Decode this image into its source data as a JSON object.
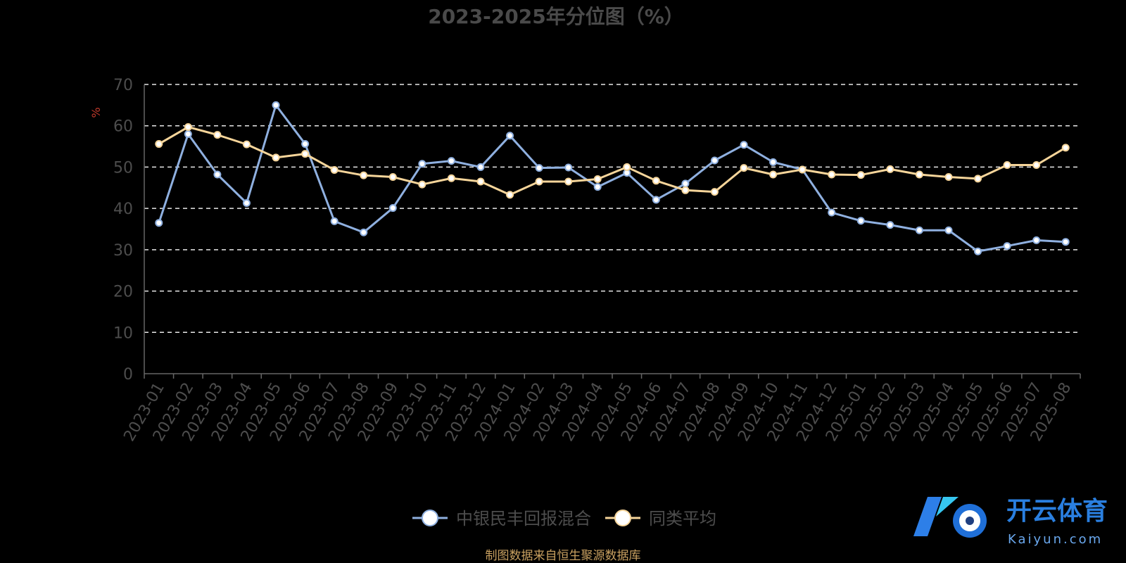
{
  "chart_data": {
    "type": "line",
    "title": "2023-2025年分位图（%）",
    "ylabel": "%",
    "ylim": [
      0,
      70
    ],
    "yticks": [
      0,
      10,
      20,
      30,
      40,
      50,
      60,
      70
    ],
    "grid": true,
    "legend_position": "bottom-center",
    "categories": [
      "2023-01",
      "2023-02",
      "2023-03",
      "2023-04",
      "2023-05",
      "2023-06",
      "2023-07",
      "2023-08",
      "2023-09",
      "2023-10",
      "2023-11",
      "2023-12",
      "2024-01",
      "2024-02",
      "2024-03",
      "2024-04",
      "2024-05",
      "2024-06",
      "2024-07",
      "2024-08",
      "2024-09",
      "2024-10",
      "2024-11",
      "2024-12",
      "2025-01",
      "2025-02",
      "2025-03",
      "2025-04",
      "2025-05",
      "2025-06",
      "2025-07",
      "2025-08"
    ],
    "series": [
      {
        "name": "中银民丰回报混合",
        "color": "#8fb0e0",
        "values": [
          36.5,
          58,
          48.2,
          41.3,
          65,
          55.6,
          36.9,
          34.2,
          40.1,
          50.8,
          51.5,
          50,
          57.6,
          49.8,
          49.9,
          45.2,
          48.6,
          42.1,
          46,
          51.6,
          55.4,
          51.2,
          49.4,
          39,
          37,
          36,
          34.7,
          34.7,
          29.6,
          30.9,
          32.3,
          31.9
        ]
      },
      {
        "name": "同类平均",
        "color": "#f6d59a",
        "values": [
          55.6,
          59.7,
          57.8,
          55.5,
          52.3,
          53.2,
          49.3,
          48,
          47.6,
          45.8,
          47.3,
          46.5,
          43.3,
          46.5,
          46.5,
          47.1,
          50,
          46.7,
          44.4,
          44,
          49.8,
          48.2,
          49.4,
          48.2,
          48.1,
          49.5,
          48.2,
          47.6,
          47.2,
          50.5,
          50.5,
          54.7
        ]
      }
    ]
  },
  "footer": {
    "source": "制图数据来自恒生聚源数据库"
  },
  "watermark": {
    "brand_cn": "开云体育",
    "brand_en": "Kaiyun.com"
  }
}
